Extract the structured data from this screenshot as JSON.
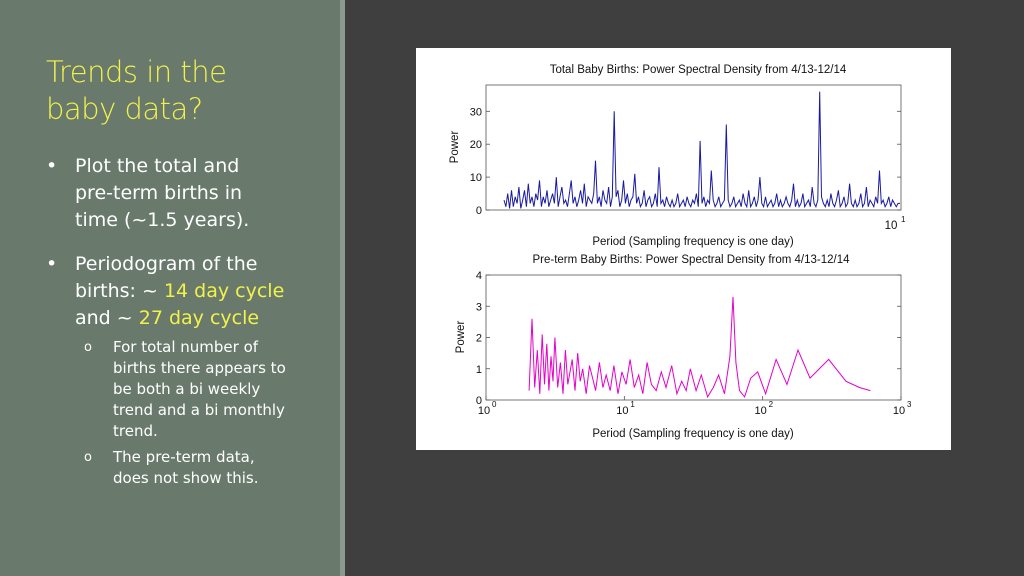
{
  "slide": {
    "title_line1": "Trends in the",
    "title_line2": "baby data?",
    "bullets": [
      {
        "line1": "Plot the total and",
        "line2": "pre-term births in",
        "line3": "time (~1.5 years)."
      },
      {
        "line1": "Periodogram of the",
        "line2_prefix": "births: ~ ",
        "line2_highlight": "14 day cycle",
        "line3_prefix": "and ~ ",
        "line3_highlight": "27 day cycle"
      }
    ],
    "sub_bullets": [
      {
        "marker": "o",
        "lines": [
          "For total number of",
          "births there appears to",
          "be both a bi weekly",
          "trend and a bi monthly",
          "trend."
        ]
      },
      {
        "marker": "o",
        "lines": [
          "The pre-term data,",
          "does not show this."
        ]
      }
    ],
    "bullet_marker": "•",
    "colors": {
      "highlight": "#f2f24a",
      "left_bg": "#697a6d",
      "right_bg": "#3f3f3f"
    }
  },
  "chart_data": [
    {
      "type": "line",
      "title": "Total Baby Births: Power Spectral Density from 4/13-12/14",
      "xlabel": "Period (Sampling frequency is one day)",
      "ylabel": "Power",
      "x_tick_labels": [
        "10",
        "1"
      ],
      "y_ticks": [
        "0",
        "10",
        "20",
        "30"
      ],
      "ylim": [
        0,
        38
      ],
      "color": "#1a1aa0",
      "grid": false,
      "series": [
        {
          "values": [
            3,
            1,
            5,
            0.5,
            6,
            1,
            4,
            2,
            7,
            0.5,
            3,
            6,
            1,
            8,
            2,
            4,
            1,
            5,
            3,
            9,
            1,
            4,
            2,
            6,
            1,
            3,
            5,
            2,
            10,
            1,
            4,
            7,
            2,
            3,
            1,
            5,
            9,
            2,
            4,
            1,
            3,
            6,
            2,
            8,
            1,
            4,
            3,
            2,
            5,
            15,
            2,
            4,
            1,
            6,
            3,
            2,
            7,
            1,
            4,
            30,
            4,
            6,
            1,
            3,
            9,
            2,
            5,
            1,
            3,
            4,
            11,
            2,
            4,
            1,
            2,
            6,
            1,
            3,
            4,
            1,
            2,
            5,
            1,
            13,
            2,
            3,
            1,
            4,
            2,
            1,
            3,
            1,
            2,
            5,
            1,
            2,
            3,
            1,
            4,
            2,
            1,
            3,
            2,
            5,
            1,
            21,
            2,
            4,
            1,
            3,
            2,
            12,
            3,
            1,
            2,
            4,
            1,
            2,
            3,
            26,
            3,
            1,
            2,
            4,
            1,
            2,
            3,
            1,
            5,
            2,
            1,
            6,
            1,
            2,
            4,
            1,
            3,
            10,
            2,
            1,
            4,
            1,
            2,
            3,
            1,
            2,
            5,
            1,
            3,
            1,
            2,
            4,
            2,
            1,
            3,
            8,
            1,
            3,
            1,
            2,
            5,
            1,
            2,
            3,
            1,
            7,
            2,
            1,
            3,
            36,
            4,
            2,
            1,
            3,
            1,
            5,
            2,
            1,
            3,
            6,
            1,
            2,
            4,
            1,
            2,
            8,
            2,
            1,
            3,
            1,
            2,
            5,
            1,
            2,
            7,
            1,
            3,
            2,
            1,
            4,
            2,
            12,
            2,
            3,
            1,
            2,
            4,
            1,
            3,
            2,
            1,
            2,
            2
          ]
        }
      ]
    },
    {
      "type": "line",
      "title": "Pre-term Baby Births: Power Spectral Density from 4/13-12/14",
      "xlabel": "Period (Sampling frequency is one day)",
      "ylabel": "Power",
      "x_scale": "log",
      "x_tick_labels": [
        "10",
        "10",
        "10",
        "10"
      ],
      "x_tick_exponents": [
        "0",
        "1",
        "2",
        "3"
      ],
      "y_ticks": [
        "0",
        "1",
        "2",
        "3",
        "4"
      ],
      "ylim": [
        0,
        4
      ],
      "xlim": [
        1,
        1000
      ],
      "color": "#e600c8",
      "grid": false,
      "series": [
        {
          "x": [
            2.05,
            2.15,
            2.25,
            2.35,
            2.45,
            2.55,
            2.65,
            2.75,
            2.85,
            2.95,
            3.05,
            3.15,
            3.3,
            3.45,
            3.6,
            3.75,
            3.9,
            4.05,
            4.2,
            4.4,
            4.6,
            4.8,
            5.0,
            5.3,
            5.6,
            5.9,
            6.2,
            6.6,
            7.0,
            7.4,
            7.9,
            8.4,
            9.0,
            9.6,
            10.3,
            11.0,
            11.8,
            12.7,
            13.6,
            14.6,
            15.7,
            17.0,
            18.5,
            20,
            22,
            24,
            26,
            28,
            30,
            33,
            36,
            40,
            44,
            48,
            53,
            58,
            61,
            64,
            68,
            74,
            82,
            92,
            105,
            125,
            150,
            180,
            220,
            300,
            400,
            500,
            600
          ],
          "y": [
            0.3,
            2.6,
            0.4,
            1.6,
            0.2,
            2.1,
            0.5,
            1.8,
            0.3,
            1.4,
            0.6,
            2.0,
            0.4,
            1.2,
            0.2,
            1.6,
            0.5,
            0.9,
            1.3,
            0.3,
            1.5,
            0.6,
            1.0,
            0.2,
            1.1,
            0.7,
            0.3,
            1.2,
            0.4,
            0.8,
            0.3,
            1.1,
            0.2,
            0.9,
            0.5,
            1.3,
            0.4,
            0.8,
            0.2,
            1.2,
            0.5,
            0.3,
            0.9,
            0.4,
            1.1,
            0.2,
            0.6,
            0.3,
            1.0,
            0.3,
            0.8,
            0.1,
            0.4,
            0.8,
            0.2,
            1.4,
            3.3,
            1.2,
            0.3,
            0.1,
            0.7,
            0.9,
            0.2,
            1.3,
            0.5,
            1.6,
            0.7,
            1.3,
            0.6,
            0.4,
            0.3
          ]
        }
      ]
    }
  ]
}
